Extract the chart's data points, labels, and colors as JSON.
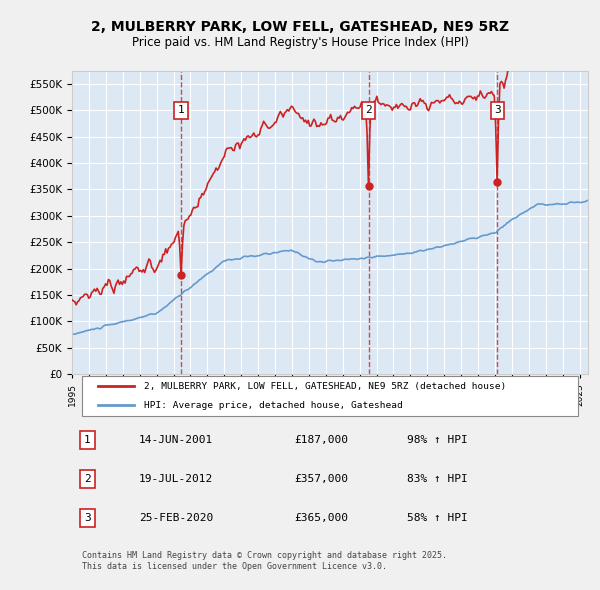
{
  "title_line1": "2, MULBERRY PARK, LOW FELL, GATESHEAD, NE9 5RZ",
  "title_line2": "Price paid vs. HM Land Registry's House Price Index (HPI)",
  "ylabel": "",
  "background_color": "#dce9f5",
  "plot_bg_color": "#dce9f5",
  "grid_color": "#ffffff",
  "red_line_label": "2, MULBERRY PARK, LOW FELL, GATESHEAD, NE9 5RZ (detached house)",
  "blue_line_label": "HPI: Average price, detached house, Gateshead",
  "transactions": [
    {
      "num": 1,
      "date": "14-JUN-2001",
      "price": 187000,
      "year": 2001.45,
      "hpi_pct": "98% ↑ HPI"
    },
    {
      "num": 2,
      "date": "19-JUL-2012",
      "price": 357000,
      "year": 2012.54,
      "hpi_pct": "83% ↑ HPI"
    },
    {
      "num": 3,
      "date": "25-FEB-2020",
      "price": 365000,
      "year": 2020.15,
      "hpi_pct": "58% ↑ HPI"
    }
  ],
  "footer": "Contains HM Land Registry data © Crown copyright and database right 2025.\nThis data is licensed under the Open Government Licence v3.0.",
  "ylim": [
    0,
    575000
  ],
  "xlim_start": 1995.0,
  "xlim_end": 2025.5
}
